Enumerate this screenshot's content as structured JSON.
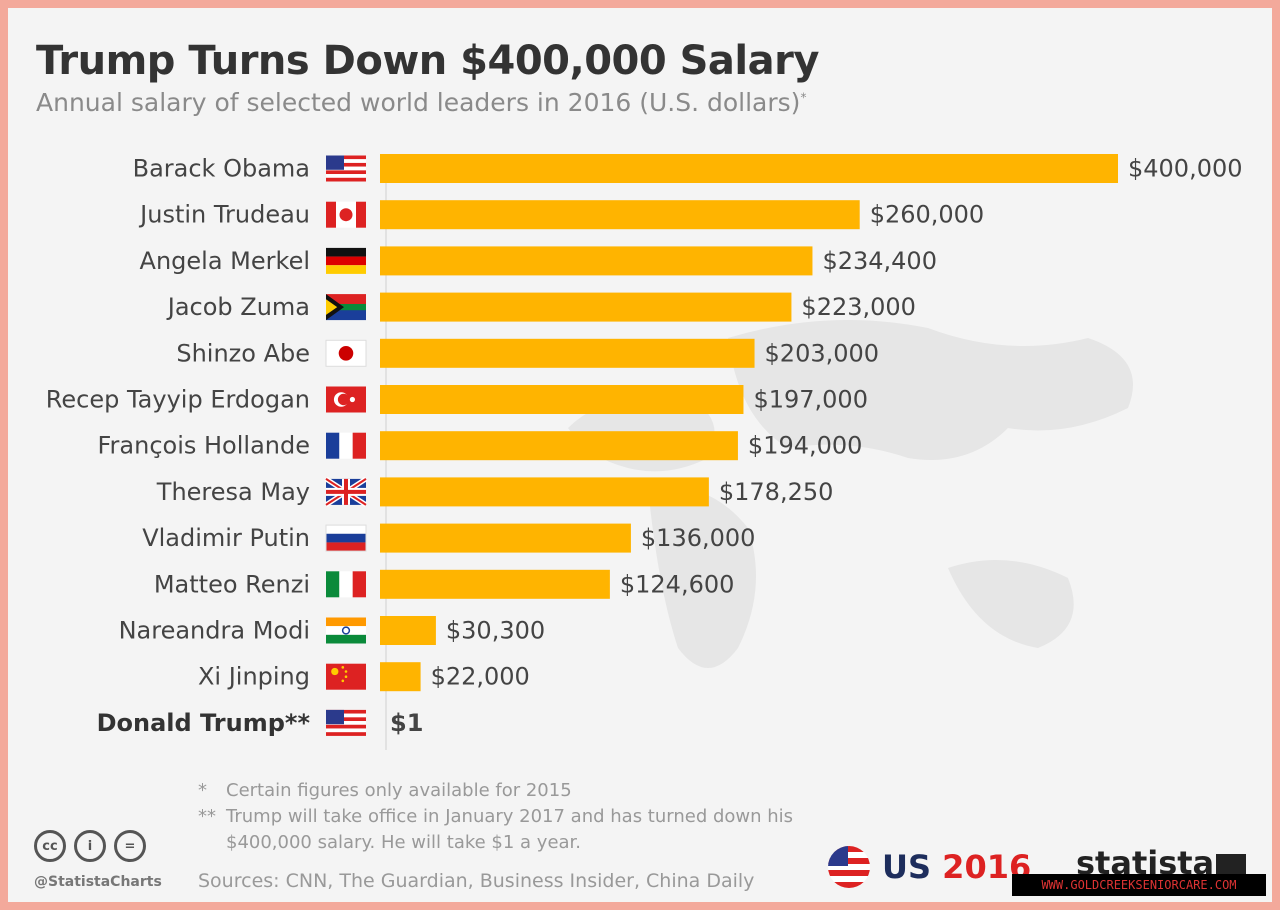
{
  "chart_data": {
    "type": "bar",
    "orientation": "horizontal",
    "title": "Trump Turns Down $400,000 Salary",
    "subtitle": "Annual salary of selected world leaders in 2016 (U.S. dollars)",
    "subtitle_mark": "*",
    "categories": [
      "Barack Obama",
      "Justin Trudeau",
      "Angela Merkel",
      "Jacob Zuma",
      "Shinzo Abe",
      "Recep Tayyip Erdogan",
      "François Hollande",
      "Theresa May",
      "Vladimir Putin",
      "Matteo Renzi",
      "Nareandra Modi",
      "Xi Jinping",
      "Donald Trump**"
    ],
    "values": [
      400000,
      260000,
      234400,
      223000,
      203000,
      197000,
      194000,
      178250,
      136000,
      124600,
      30300,
      22000,
      1
    ],
    "value_labels": [
      "$400,000",
      "$260,000",
      "$234,400",
      "$223,000",
      "$203,000",
      "$197,000",
      "$194,000",
      "$178,250",
      "$136,000",
      "$124,600",
      "$30,300",
      "$22,000",
      "$1"
    ],
    "flags": [
      "us-flag-icon",
      "canada-flag-icon",
      "germany-flag-icon",
      "south-africa-flag-icon",
      "japan-flag-icon",
      "turkey-flag-icon",
      "france-flag-icon",
      "uk-flag-icon",
      "russia-flag-icon",
      "italy-flag-icon",
      "india-flag-icon",
      "china-flag-icon",
      "us-flag-icon"
    ],
    "bold_categories": [
      "Donald Trump**"
    ],
    "bar_color": "#ffb400",
    "xlim": [
      0,
      400000
    ],
    "grid": false,
    "legend": "none"
  },
  "footnotes": [
    {
      "mark": "*",
      "text": "Certain figures only available for 2015"
    },
    {
      "mark": "**",
      "text": "Trump will take office in January 2017 and has turned down his $400,000 salary. He will take $1 a year."
    }
  ],
  "brand": {
    "handle": "@StatistaCharts",
    "sources": "Sources: CNN, The Guardian, Business Insider, China Daily",
    "us_prefix": "US",
    "us_year": "2016",
    "statista": "statista",
    "watermark": "WWW.GOLDCREEKSENIORCARE.COM",
    "cc_icons": [
      "cc-icon",
      "attribution-icon",
      "no-derivatives-icon"
    ],
    "cc_labels": [
      "cc",
      "i",
      "="
    ]
  }
}
